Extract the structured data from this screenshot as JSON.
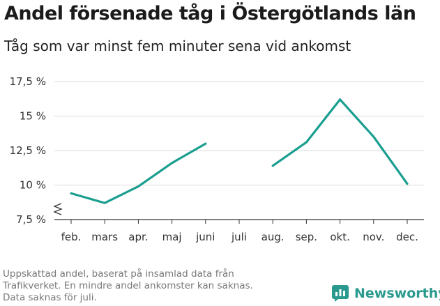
{
  "header": {
    "title": "Andel försenade tåg i Östergötlands län",
    "subtitle": "Tåg som var minst fem minuter sena vid ankomst"
  },
  "footnote": {
    "lines": [
      "Uppskattad andel, baserat på insamlad data från",
      "Trafikverket. En mindre andel ankomster kan saknas.",
      "Data saknas för juli."
    ]
  },
  "brand": {
    "name": "Newsworthy",
    "icon": "bar-chart-logo-icon",
    "color": "#2a9a8f"
  },
  "chart_data": {
    "type": "line",
    "title": "Andel försenade tåg i Östergötlands län",
    "subtitle": "Tåg som var minst fem minuter sena vid ankomst",
    "categories": [
      "feb.",
      "mars",
      "apr.",
      "maj",
      "juni",
      "juli",
      "aug.",
      "sep.",
      "okt.",
      "nov.",
      "dec."
    ],
    "series": [
      {
        "values": [
          9.4,
          8.7,
          9.9,
          11.6,
          13.0,
          null,
          11.4,
          13.1,
          16.2,
          13.5,
          10.1
        ],
        "color": "#1a9e8f"
      }
    ],
    "yticks": [
      7.5,
      10,
      12.5,
      15,
      17.5
    ],
    "ytick_labels": [
      "7,5 %",
      "10 %",
      "12,5 %",
      "15 %",
      "17,5 %"
    ],
    "ylim": [
      7.5,
      17.5
    ],
    "grid": true,
    "axis_break": true,
    "xlabel": "",
    "ylabel": ""
  }
}
